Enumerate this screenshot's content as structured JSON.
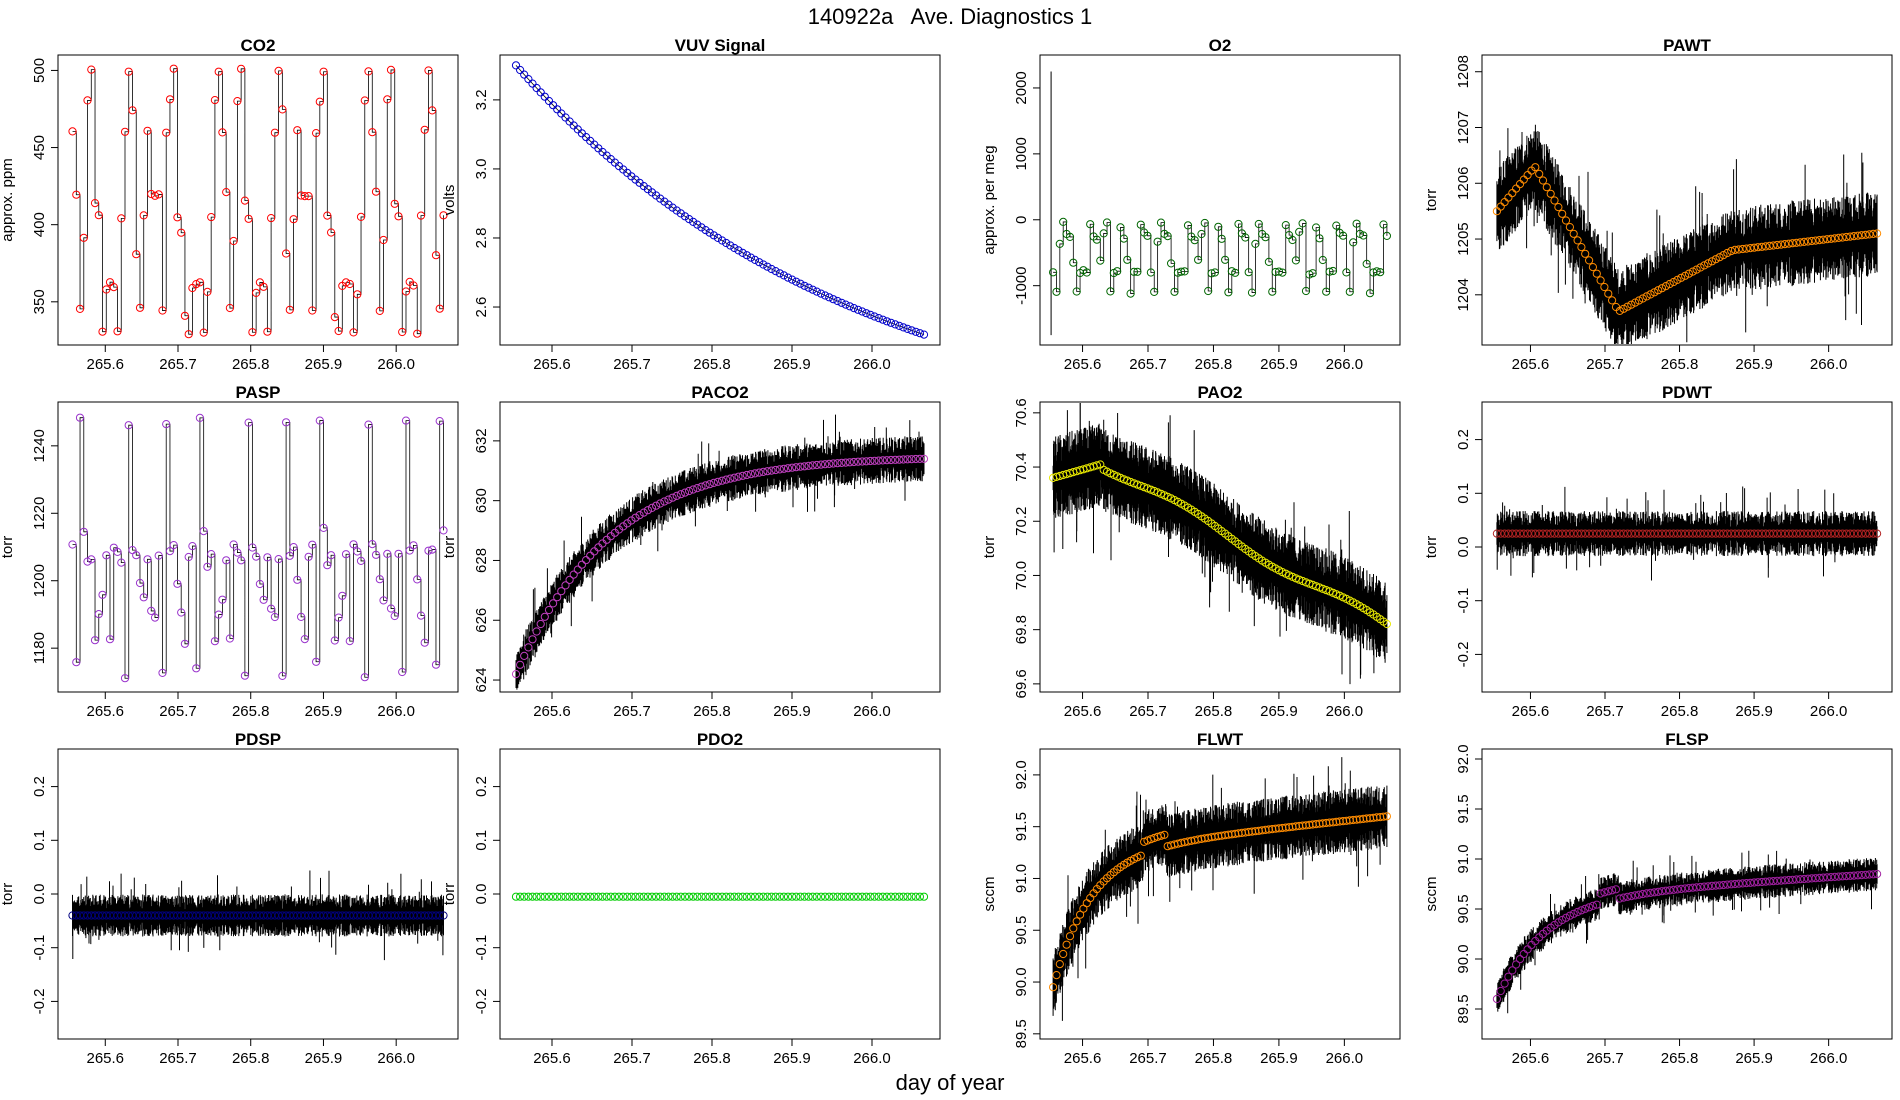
{
  "figure": {
    "title": "140922a   Ave. Diagnostics 1",
    "xlabel": "day of year"
  },
  "chart_data": [
    {
      "type": "line",
      "title": "CO2",
      "ylabel": "approx. ppm",
      "color": "#ff0000",
      "xlim": [
        265.535,
        266.085
      ],
      "ylim": [
        322,
        510
      ],
      "xticks": [
        265.6,
        265.7,
        265.8,
        265.9,
        266.0
      ],
      "xtick_labels": [
        "265.6",
        "265.7",
        "265.8",
        "265.9",
        "266.0"
      ],
      "yticks": [
        350,
        400,
        450,
        500
      ],
      "ytick_labels": [
        "350",
        "400",
        "450",
        "500"
      ],
      "pattern": "co2"
    },
    {
      "type": "line",
      "title": "VUV Signal",
      "ylabel": "volts",
      "color": "#0000cc",
      "xlim": [
        265.535,
        266.085
      ],
      "ylim": [
        2.49,
        3.33
      ],
      "xticks": [
        265.6,
        265.7,
        265.8,
        265.9,
        266.0
      ],
      "xtick_labels": [
        "265.6",
        "265.7",
        "265.8",
        "265.9",
        "266.0"
      ],
      "yticks": [
        2.6,
        2.8,
        3.0,
        3.2
      ],
      "ytick_labels": [
        "2.6",
        "2.8",
        "3.0",
        "3.2"
      ],
      "pattern": "vuv",
      "start": 3.3,
      "end": 2.52
    },
    {
      "type": "line",
      "title": "O2",
      "ylabel": "approx. per meg",
      "color": "#006600",
      "xlim": [
        265.535,
        266.085
      ],
      "ylim": [
        -1900,
        2500
      ],
      "xticks": [
        265.6,
        265.7,
        265.8,
        265.9,
        266.0
      ],
      "xtick_labels": [
        "265.6",
        "265.7",
        "265.8",
        "265.9",
        "266.0"
      ],
      "yticks": [
        -1000,
        0,
        1000,
        2000
      ],
      "ytick_labels": [
        "-1000",
        "0",
        "1000",
        "2000"
      ],
      "pattern": "o2"
    },
    {
      "type": "line",
      "title": "PAWT",
      "ylabel": "torr",
      "color": "#ff8c00",
      "xlim": [
        265.535,
        266.085
      ],
      "ylim": [
        1203.1,
        1208.3
      ],
      "xticks": [
        265.6,
        265.7,
        265.8,
        265.9,
        266.0
      ],
      "xtick_labels": [
        "265.6",
        "265.7",
        "265.8",
        "265.9",
        "266.0"
      ],
      "yticks": [
        1204,
        1205,
        1206,
        1207,
        1208
      ],
      "ytick_labels": [
        "1204",
        "1205",
        "1206",
        "1207",
        "1208"
      ],
      "pattern": "pawt",
      "noise": 0.55
    },
    {
      "type": "line",
      "title": "PASP",
      "ylabel": "torr",
      "color": "#9932cc",
      "xlim": [
        265.535,
        266.085
      ],
      "ylim": [
        1167,
        1253
      ],
      "xticks": [
        265.6,
        265.7,
        265.8,
        265.9,
        266.0
      ],
      "xtick_labels": [
        "265.6",
        "265.7",
        "265.8",
        "265.9",
        "266.0"
      ],
      "yticks": [
        1180,
        1200,
        1220,
        1240
      ],
      "ytick_labels": [
        "1180",
        "1200",
        "1220",
        "1240"
      ],
      "pattern": "pasp"
    },
    {
      "type": "line",
      "title": "PACO2",
      "ylabel": "torr",
      "color": "#c040c0",
      "xlim": [
        265.535,
        266.085
      ],
      "ylim": [
        623.6,
        633.3
      ],
      "xticks": [
        265.6,
        265.7,
        265.8,
        265.9,
        266.0
      ],
      "xtick_labels": [
        "265.6",
        "265.7",
        "265.8",
        "265.9",
        "266.0"
      ],
      "yticks": [
        624,
        626,
        628,
        630,
        632
      ],
      "ytick_labels": [
        "624",
        "626",
        "628",
        "630",
        "632"
      ],
      "pattern": "paco2",
      "noise": 0.55
    },
    {
      "type": "line",
      "title": "PAO2",
      "ylabel": "torr",
      "color": "#e8e800",
      "xlim": [
        265.535,
        266.085
      ],
      "ylim": [
        69.57,
        70.64
      ],
      "xticks": [
        265.6,
        265.7,
        265.8,
        265.9,
        266.0
      ],
      "xtick_labels": [
        "265.6",
        "265.7",
        "265.8",
        "265.9",
        "266.0"
      ],
      "yticks": [
        69.6,
        69.8,
        70.0,
        70.2,
        70.4,
        70.6
      ],
      "ytick_labels": [
        "69.6",
        "69.8",
        "70.0",
        "70.2",
        "70.4",
        "70.6"
      ],
      "pattern": "pao2",
      "noise": 0.11
    },
    {
      "type": "line",
      "title": "PDWT",
      "ylabel": "torr",
      "color": "#b22222",
      "xlim": [
        265.535,
        266.085
      ],
      "ylim": [
        -0.27,
        0.27
      ],
      "xticks": [
        265.6,
        265.7,
        265.8,
        265.9,
        266.0
      ],
      "xtick_labels": [
        "265.6",
        "265.7",
        "265.8",
        "265.9",
        "266.0"
      ],
      "yticks": [
        -0.2,
        -0.1,
        0.0,
        0.1,
        0.2
      ],
      "ytick_labels": [
        "-0.2",
        "-0.1",
        "0.0",
        "0.1",
        "0.2"
      ],
      "pattern": "flat",
      "level": 0.025,
      "noise": 0.03
    },
    {
      "type": "line",
      "title": "PDSP",
      "ylabel": "torr",
      "color": "#000080",
      "xlim": [
        265.535,
        266.085
      ],
      "ylim": [
        -0.27,
        0.27
      ],
      "xticks": [
        265.6,
        265.7,
        265.8,
        265.9,
        266.0
      ],
      "xtick_labels": [
        "265.6",
        "265.7",
        "265.8",
        "265.9",
        "266.0"
      ],
      "yticks": [
        -0.2,
        -0.1,
        0.0,
        0.1,
        0.2
      ],
      "ytick_labels": [
        "-0.2",
        "-0.1",
        "0.0",
        "0.1",
        "0.2"
      ],
      "pattern": "flat",
      "level": -0.04,
      "noise": 0.028
    },
    {
      "type": "line",
      "title": "PDO2",
      "ylabel": "torr",
      "color": "#00cc00",
      "xlim": [
        265.535,
        266.085
      ],
      "ylim": [
        -0.27,
        0.27
      ],
      "xticks": [
        265.6,
        265.7,
        265.8,
        265.9,
        266.0
      ],
      "xtick_labels": [
        "265.6",
        "265.7",
        "265.8",
        "265.9",
        "266.0"
      ],
      "yticks": [
        -0.2,
        -0.1,
        0.0,
        0.1,
        0.2
      ],
      "ytick_labels": [
        "-0.2",
        "-0.1",
        "0.0",
        "0.1",
        "0.2"
      ],
      "pattern": "flat",
      "level": -0.005,
      "noise": 0.0
    },
    {
      "type": "line",
      "title": "FLWT",
      "ylabel": "sccm",
      "color": "#ff8c00",
      "xlim": [
        265.535,
        266.085
      ],
      "ylim": [
        89.45,
        92.25
      ],
      "xticks": [
        265.6,
        265.7,
        265.8,
        265.9,
        266.0
      ],
      "xtick_labels": [
        "265.6",
        "265.7",
        "265.8",
        "265.9",
        "266.0"
      ],
      "yticks": [
        89.5,
        90.0,
        90.5,
        91.0,
        91.5,
        92.0
      ],
      "ytick_labels": [
        "89.5",
        "90.0",
        "90.5",
        "91.0",
        "91.5",
        "92.0"
      ],
      "pattern": "flwt",
      "noise": 0.22
    },
    {
      "type": "line",
      "title": "FLSP",
      "ylabel": "sccm",
      "color": "#a020a0",
      "xlim": [
        265.535,
        266.085
      ],
      "ylim": [
        89.2,
        92.1
      ],
      "xticks": [
        265.6,
        265.7,
        265.8,
        265.9,
        266.0
      ],
      "xtick_labels": [
        "265.6",
        "265.7",
        "265.8",
        "265.9",
        "266.0"
      ],
      "yticks": [
        89.5,
        90.0,
        90.5,
        91.0,
        91.5,
        92.0
      ],
      "ytick_labels": [
        "89.5",
        "90.0",
        "90.5",
        "91.0",
        "91.5",
        "92.0"
      ],
      "pattern": "flsp",
      "noise": 0.12
    }
  ]
}
